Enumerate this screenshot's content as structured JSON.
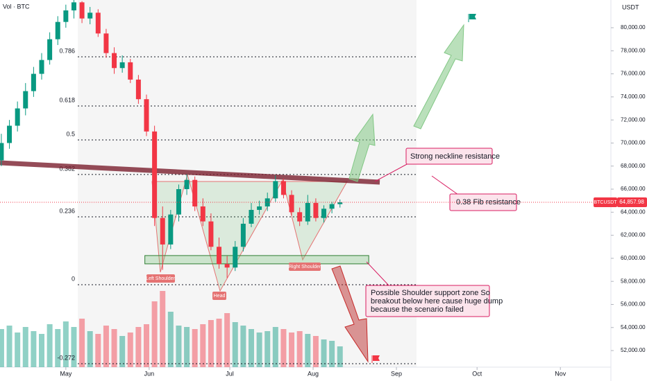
{
  "chart_data": {
    "type": "candlestick",
    "symbol": "BTCUSDT",
    "currency": "USDT",
    "volume_label": "Vol · BTC",
    "last_price": {
      "value": 64857.98,
      "label": "64,857.98"
    },
    "up_color": "#089981",
    "down_color": "#f23645",
    "xlim": [
      -24.5,
      202.8
    ],
    "ylim": [
      50562,
      82403
    ],
    "xticks": [
      {
        "value": 0,
        "label": "May"
      },
      {
        "value": 31,
        "label": "Jun"
      },
      {
        "value": 61,
        "label": "Jul"
      },
      {
        "value": 92,
        "label": "Aug"
      },
      {
        "value": 123,
        "label": "Sep"
      },
      {
        "value": 153,
        "label": "Oct"
      },
      {
        "value": 184,
        "label": "Nov"
      }
    ],
    "yticks": [
      {
        "value": 52000,
        "label": "52,000.00"
      },
      {
        "value": 54000,
        "label": "54,000.00"
      },
      {
        "value": 56000,
        "label": "56,000.00"
      },
      {
        "value": 58000,
        "label": "58,000.00"
      },
      {
        "value": 60000,
        "label": "60,000.00"
      },
      {
        "value": 62000,
        "label": "62,000.00"
      },
      {
        "value": 64000,
        "label": "64,000.00"
      },
      {
        "value": 66000,
        "label": "66,000.00"
      },
      {
        "value": 68000,
        "label": "68,000.00"
      },
      {
        "value": 70000,
        "label": "70,000.00"
      },
      {
        "value": 72000,
        "label": "72,000.00"
      },
      {
        "value": 74000,
        "label": "74,000.00"
      },
      {
        "value": 76000,
        "label": "76,000.00"
      },
      {
        "value": 78000,
        "label": "78,000.00"
      },
      {
        "value": 80000,
        "label": "80,000.00"
      }
    ],
    "x": [
      -24,
      -21,
      -18,
      -15,
      -12,
      -9,
      -6,
      -3,
      0,
      3,
      6,
      9,
      12,
      15,
      18,
      21,
      24,
      27,
      30,
      33,
      36,
      39,
      42,
      45,
      48,
      51,
      54,
      57,
      60,
      63,
      66,
      69,
      72,
      75,
      78,
      81,
      84,
      87,
      90,
      93,
      96,
      99,
      102
    ],
    "open": [
      68500,
      70000,
      71500,
      73000,
      74500,
      76000,
      77200,
      79000,
      80500,
      81500,
      82200,
      80800,
      81300,
      79500,
      77800,
      76500,
      77000,
      75500,
      73800,
      71000,
      63500,
      61200,
      63800,
      66000,
      66800,
      64500,
      63200,
      61000,
      59500,
      59200,
      61000,
      63000,
      64200,
      64500,
      65200,
      66700,
      65500,
      64000,
      63200,
      64800,
      63500,
      64300,
      64700
    ],
    "high": [
      70800,
      72000,
      73600,
      75200,
      76600,
      77800,
      79600,
      81000,
      82000,
      82400,
      82300,
      81800,
      81600,
      79900,
      78300,
      77600,
      77300,
      75900,
      74200,
      71500,
      64500,
      64200,
      66400,
      67300,
      67100,
      65200,
      63900,
      61800,
      60200,
      61500,
      63500,
      64800,
      65000,
      65700,
      67200,
      66900,
      65900,
      64400,
      65500,
      65200,
      64600,
      64900,
      65100
    ],
    "low": [
      68000,
      69500,
      71000,
      72400,
      74000,
      75500,
      76800,
      78500,
      80000,
      80800,
      80400,
      80300,
      79200,
      77400,
      76000,
      76100,
      75200,
      73400,
      70600,
      62800,
      59000,
      60800,
      63200,
      65500,
      64100,
      62800,
      60700,
      59100,
      58300,
      58900,
      60600,
      62700,
      63800,
      64100,
      64900,
      65200,
      63700,
      62800,
      62900,
      63200,
      63100,
      63900,
      64400
    ],
    "close": [
      70000,
      71500,
      73000,
      74500,
      76000,
      77200,
      79000,
      80500,
      81500,
      82200,
      80800,
      81300,
      79500,
      77800,
      76500,
      77000,
      75500,
      73800,
      71000,
      63500,
      61200,
      63800,
      66000,
      66800,
      64500,
      63200,
      61000,
      59500,
      59200,
      61000,
      63000,
      64200,
      64500,
      65200,
      66700,
      65500,
      64000,
      63200,
      64800,
      63500,
      64300,
      64700,
      64857.98
    ],
    "volume": [
      55,
      60,
      50,
      58,
      52,
      48,
      62,
      55,
      66,
      58,
      70,
      52,
      48,
      60,
      55,
      45,
      50,
      58,
      62,
      95,
      110,
      80,
      60,
      58,
      55,
      62,
      68,
      70,
      78,
      65,
      60,
      55,
      50,
      52,
      58,
      55,
      50,
      52,
      48,
      45,
      40,
      38,
      30
    ],
    "fib_levels": [
      {
        "value": 77477,
        "label": "0.786"
      },
      {
        "value": 73210,
        "label": "0.618"
      },
      {
        "value": 70270,
        "label": "0.5"
      },
      {
        "value": 67270,
        "label": "0.382"
      },
      {
        "value": 63600,
        "label": "0.236"
      },
      {
        "value": 57710,
        "label": "0"
      },
      {
        "value": 50860,
        "label": "-0.272"
      }
    ],
    "neckline": {
      "x": [
        -24.5,
        116.8
      ],
      "y": [
        68285,
        66602
      ]
    },
    "support_zone": {
      "x": [
        29.4,
        112.7
      ],
      "y": [
        59520,
        60240
      ]
    },
    "pattern_labels": [
      "Left Shoulder",
      "Head",
      "Right Shoulder"
    ],
    "callouts": [
      "Strong neckline resistance",
      "0.38 Fib resistance",
      [
        "Possible Shoulder support zone So",
        "breakout below here cause huge dump",
        "because the scenario failed"
      ]
    ]
  }
}
